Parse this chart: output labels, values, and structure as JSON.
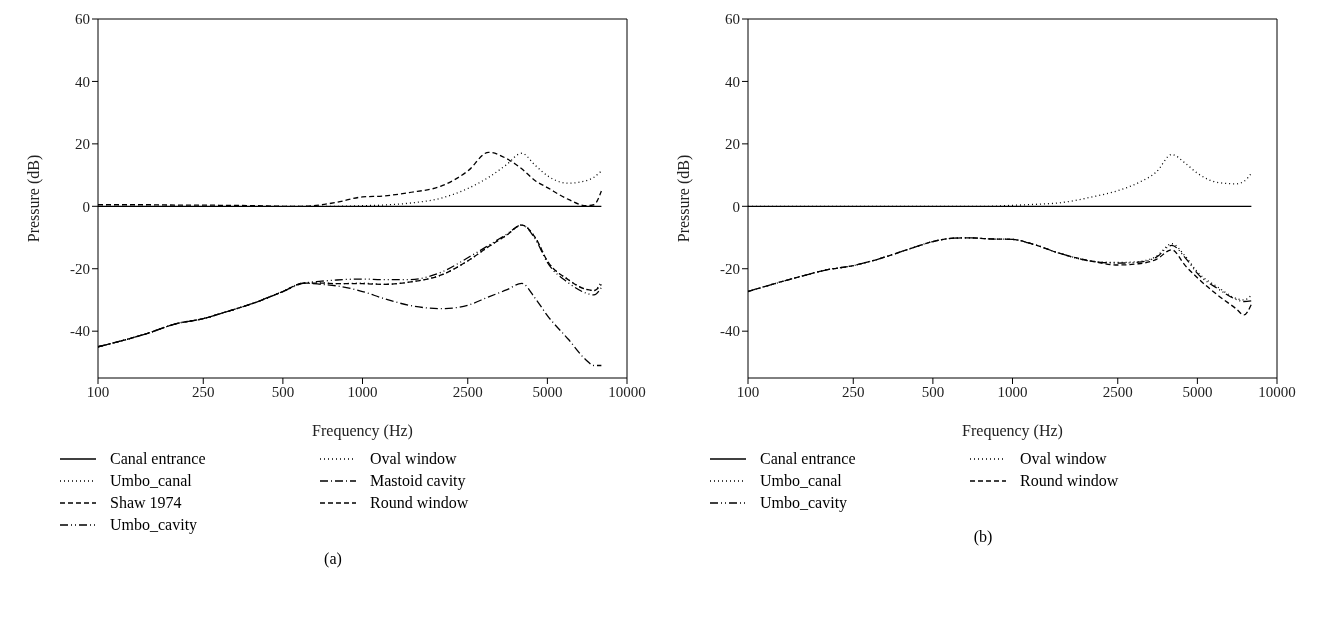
{
  "chart_data": [
    {
      "type": "line",
      "xlabel": "Frequency (Hz)",
      "ylabel": "Pressure (dB)",
      "annotations": [
        "(a)"
      ],
      "log": "x",
      "xlim": [
        100,
        10000
      ],
      "xticks": [
        100,
        250,
        500,
        1000,
        2500,
        5000,
        10000
      ],
      "ylim": [
        -55,
        60
      ],
      "yticks": [
        -40,
        -20,
        0,
        20,
        40,
        60
      ],
      "legend": "bottom",
      "x": [
        100,
        150,
        200,
        250,
        300,
        400,
        500,
        600,
        700,
        800,
        1000,
        1200,
        1500,
        2000,
        2500,
        3000,
        3500,
        4000,
        4500,
        5000,
        6000,
        7000,
        7500,
        8000
      ],
      "series": [
        {
          "name": "Canal entrance",
          "color": "#000000",
          "line_style": "solid",
          "values": [
            0,
            0,
            0,
            0,
            0,
            0,
            0,
            0,
            0,
            0,
            0,
            0,
            0,
            0,
            0,
            0,
            0,
            0,
            0,
            0,
            0,
            0,
            0,
            0
          ]
        },
        {
          "name": "Umbo_canal",
          "color": "#000000",
          "line_style": "dotted",
          "values": [
            -45,
            -41,
            -37.5,
            -36,
            -34,
            -30.6,
            -27.3,
            -24.6,
            -24.5,
            -24.8,
            -24.6,
            -25,
            -24.3,
            -21.9,
            -17.5,
            -12.9,
            -9.3,
            -6,
            -10,
            -17.5,
            -23.5,
            -26.6,
            -27,
            -24
          ]
        },
        {
          "name": "Shaw 1974",
          "color": "#000000",
          "line_style": "dashed",
          "values": [
            0.5,
            0.5,
            0.4,
            0.4,
            0.3,
            0.2,
            0,
            0,
            0.5,
            1.3,
            3,
            3.3,
            4.4,
            6.6,
            11.3,
            17.3,
            15.3,
            12,
            8.2,
            6,
            2.2,
            0.2,
            0.5,
            4.9
          ]
        },
        {
          "name": "Umbo_cavity",
          "color": "#000000",
          "line_style": "dashdotdot",
          "values": [
            -45,
            -41,
            -37.5,
            -36,
            -34,
            -30.6,
            -27.3,
            -24.6,
            -24,
            -23.6,
            -23.3,
            -23.5,
            -23.5,
            -21,
            -16.5,
            -12.5,
            -9,
            -6,
            -10.5,
            -18,
            -24.5,
            -27.8,
            -28.4,
            -26
          ]
        },
        {
          "name": "Oval window",
          "color": "#000000",
          "line_style": "dotted",
          "values": [
            0,
            0,
            0,
            0,
            0,
            0,
            0,
            0,
            0,
            0,
            0.2,
            0.4,
            1,
            2.7,
            5.7,
            9.3,
            13.3,
            17,
            13.1,
            9.8,
            7.4,
            8.2,
            9.3,
            11.3
          ]
        },
        {
          "name": "Mastoid cavity",
          "color": "#000000",
          "line_style": "dashdot",
          "values": [
            -45,
            -41,
            -37.5,
            -36,
            -34,
            -30.6,
            -27.3,
            -24.6,
            -25,
            -25.5,
            -27.3,
            -29.5,
            -31.7,
            -32.8,
            -31.7,
            -29,
            -26.8,
            -24.7,
            -29.5,
            -35,
            -42.6,
            -49.2,
            -51,
            -51
          ]
        },
        {
          "name": "Round window",
          "color": "#000000",
          "line_style": "dashed",
          "values": [
            -45,
            -41,
            -37.5,
            -36,
            -34,
            -30.6,
            -27.3,
            -24.6,
            -24.6,
            -24.8,
            -24.8,
            -25,
            -24.3,
            -21.9,
            -17.5,
            -12.9,
            -9.3,
            -6,
            -10,
            -17.5,
            -23.5,
            -26.6,
            -27,
            -25
          ]
        }
      ]
    },
    {
      "type": "line",
      "xlabel": "Frequency (Hz)",
      "ylabel": "Pressure (dB)",
      "annotations": [
        "(b)"
      ],
      "log": "x",
      "xlim": [
        100,
        10000
      ],
      "xticks": [
        100,
        250,
        500,
        1000,
        2500,
        5000,
        10000
      ],
      "ylim": [
        -55,
        60
      ],
      "yticks": [
        -40,
        -20,
        0,
        20,
        40,
        60
      ],
      "legend": "bottom",
      "x": [
        100,
        150,
        200,
        250,
        300,
        400,
        500,
        600,
        700,
        800,
        1000,
        1200,
        1500,
        2000,
        2500,
        3000,
        3500,
        4000,
        4500,
        5000,
        6000,
        7000,
        7500,
        8000
      ],
      "series": [
        {
          "name": "Canal entrance",
          "color": "#000000",
          "line_style": "solid",
          "values": [
            0,
            0,
            0,
            0,
            0,
            0,
            0,
            0,
            0,
            0,
            0,
            0,
            0,
            0,
            0,
            0,
            0,
            0,
            0,
            0,
            0,
            0,
            0,
            0
          ]
        },
        {
          "name": "Umbo_canal",
          "color": "#000000",
          "line_style": "dotted",
          "values": [
            -27.3,
            -23,
            -20.3,
            -19,
            -17.3,
            -13.9,
            -11.3,
            -10.2,
            -10.1,
            -10.4,
            -10.6,
            -12.2,
            -15,
            -17.6,
            -18,
            -17.7,
            -16,
            -12,
            -16,
            -21,
            -26,
            -29.5,
            -30,
            -28.5
          ]
        },
        {
          "name": "Umbo_cavity",
          "color": "#000000",
          "line_style": "dashdotdot",
          "values": [
            -27.3,
            -23,
            -20.3,
            -19,
            -17.3,
            -13.9,
            -11.3,
            -10.2,
            -10.1,
            -10.4,
            -10.6,
            -12.2,
            -15,
            -17.6,
            -18.2,
            -17.9,
            -16.3,
            -12.5,
            -16.5,
            -21.5,
            -26.5,
            -29.8,
            -30.5,
            -30.3
          ]
        },
        {
          "name": "Oval window",
          "color": "#000000",
          "line_style": "dotted",
          "values": [
            0,
            0,
            0,
            0,
            0,
            0,
            0,
            0,
            0,
            0,
            0.3,
            0.6,
            1.1,
            3,
            5,
            7.6,
            11,
            16.6,
            13.8,
            10.6,
            7.6,
            7.2,
            8,
            10.6
          ]
        },
        {
          "name": "Round window",
          "color": "#000000",
          "line_style": "dashed",
          "values": [
            -27.3,
            -23,
            -20.3,
            -19,
            -17.3,
            -13.9,
            -11.3,
            -10.2,
            -10.1,
            -10.4,
            -10.6,
            -12.2,
            -15,
            -17.6,
            -18.8,
            -18.4,
            -17,
            -13.9,
            -19,
            -22.9,
            -28.6,
            -32.8,
            -34.8,
            -31.4
          ]
        }
      ]
    }
  ]
}
